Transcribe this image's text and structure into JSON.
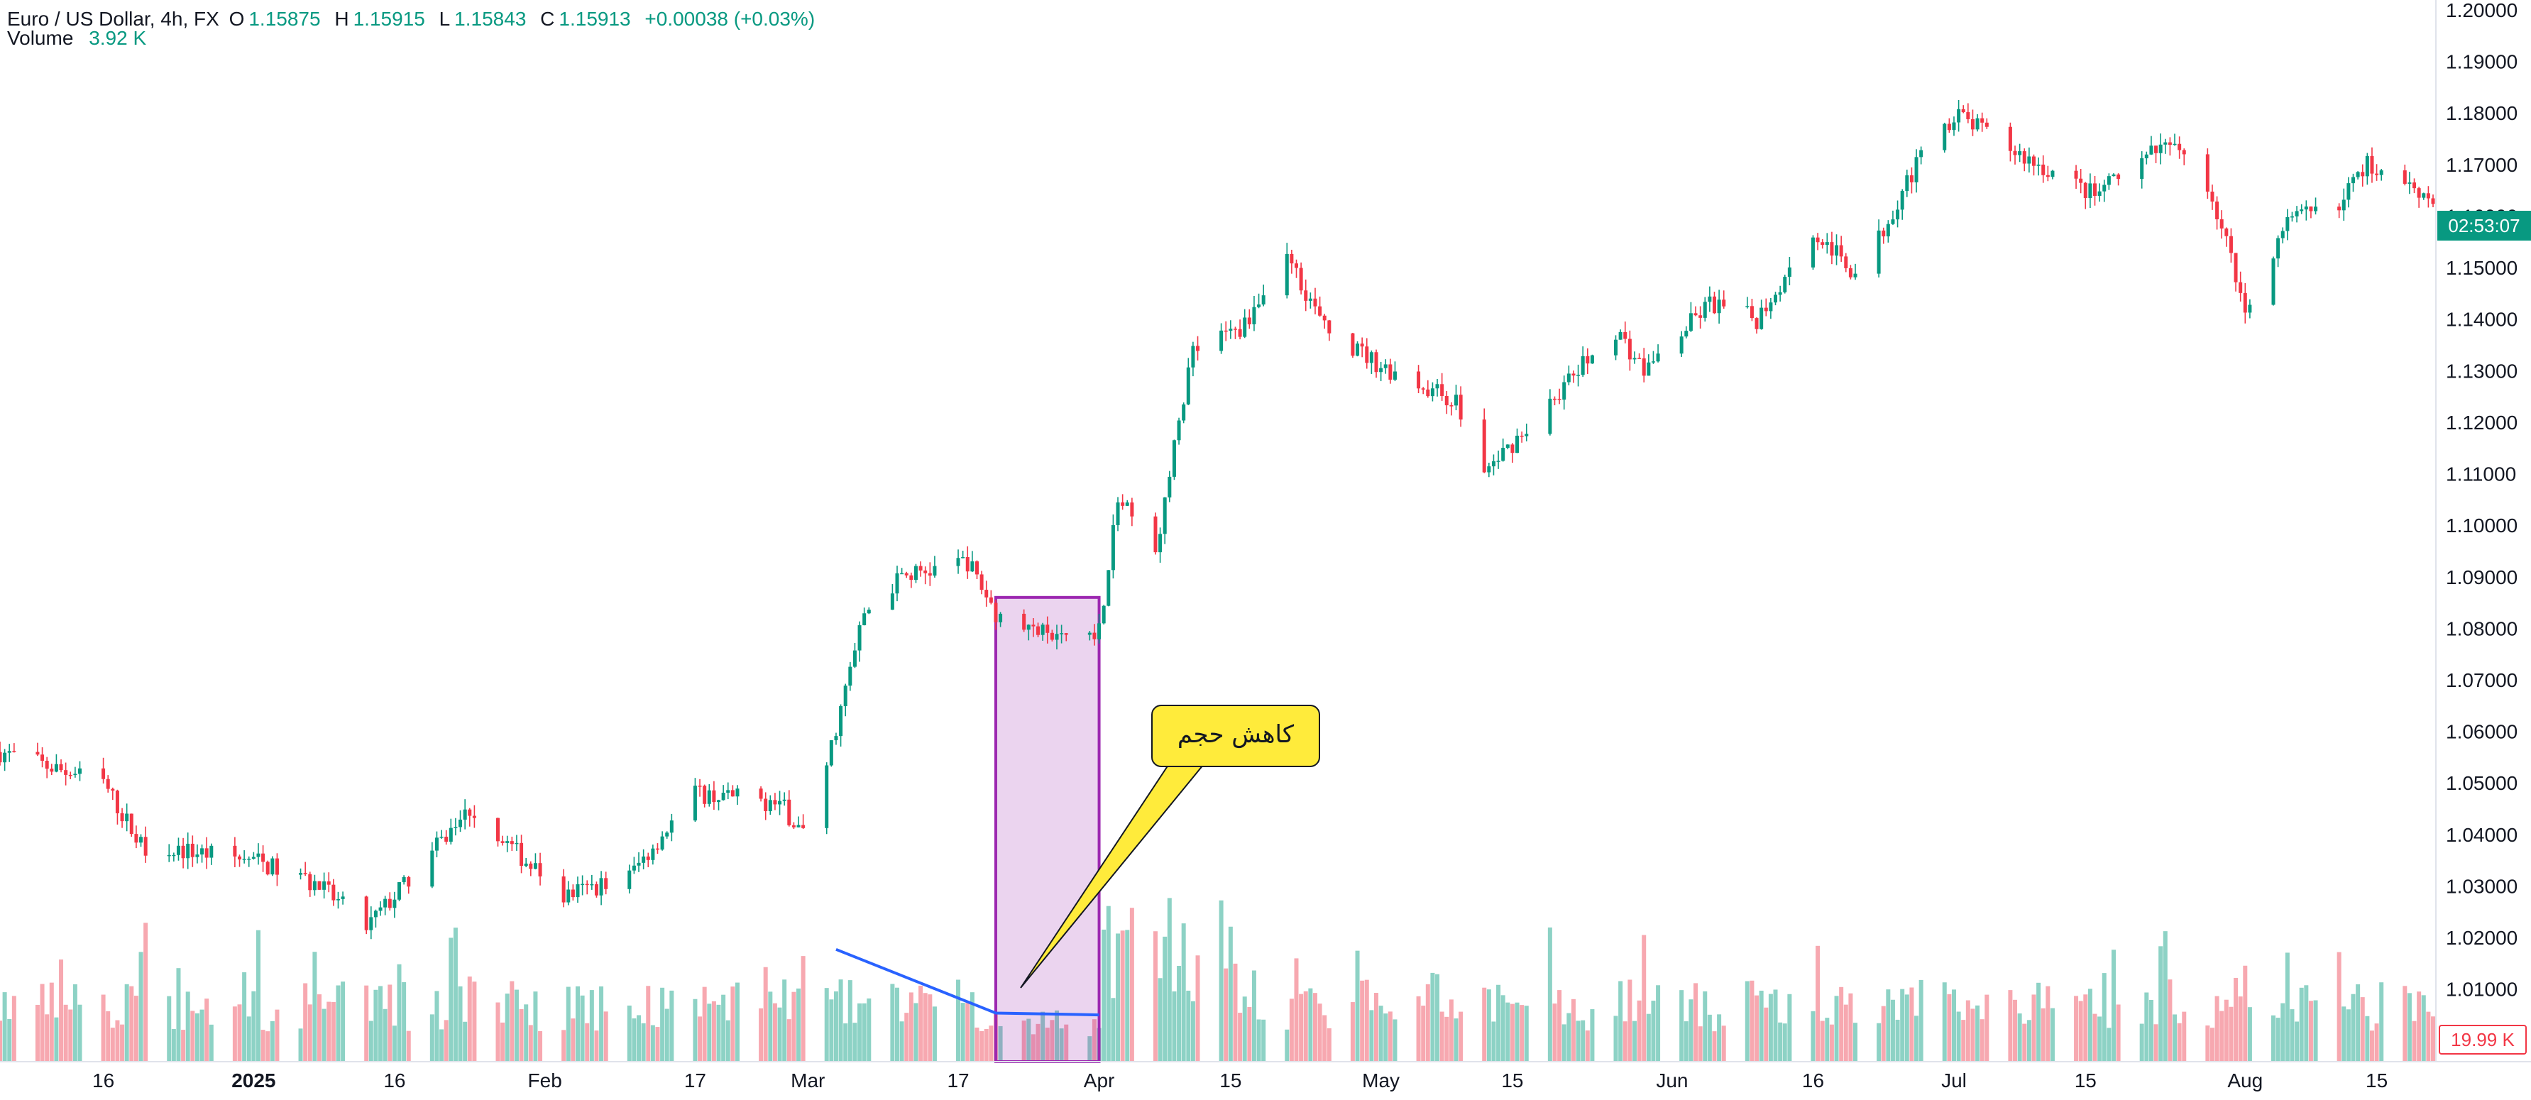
{
  "header": {
    "symbol": "Euro / US Dollar, 4h, FX",
    "o_label": "O",
    "o_value": "1.15875",
    "h_label": "H",
    "h_value": "1.15915",
    "l_label": "L",
    "l_value": "1.15843",
    "c_label": "C",
    "c_value": "1.15913",
    "change": "+0.00038 (+0.03%)",
    "volume_label": "Volume",
    "volume_value": "3.92 K"
  },
  "price_tag": "02:53:07",
  "volume_tag": "19.99 K",
  "annotation": "کاهش حجم",
  "colors": {
    "up": "#089981",
    "down": "#f23645",
    "upVol": "#8dd2c5",
    "downVol": "#f7a8b0",
    "box": "#9c27b0",
    "trend": "#2962ff",
    "callout": "#ffeb3b"
  },
  "chart_data": {
    "type": "candlestick",
    "title": "Euro / US Dollar, 4h, FX",
    "ylim": [
      1.005,
      1.2
    ],
    "y_ticks": [
      "1.01000",
      "1.02000",
      "1.03000",
      "1.04000",
      "1.05000",
      "1.06000",
      "1.07000",
      "1.08000",
      "1.09000",
      "1.10000",
      "1.11000",
      "1.12000",
      "1.13000",
      "1.14000",
      "1.15000",
      "1.16000",
      "1.17000",
      "1.18000",
      "1.19000",
      "1.20000"
    ],
    "x_ticks": [
      "16",
      "2025",
      "16",
      "Feb",
      "17",
      "Mar",
      "17",
      "Apr",
      "15",
      "May",
      "15",
      "Jun",
      "16",
      "Jul",
      "15",
      "Aug",
      "15"
    ],
    "price_path": [
      {
        "t": "Dec 5",
        "y": 1.056
      },
      {
        "t": "Dec 16",
        "y": 1.05
      },
      {
        "t": "Dec 20",
        "y": 1.038
      },
      {
        "t": "Jan 1",
        "y": 1.035
      },
      {
        "t": "Jan 8",
        "y": 1.03
      },
      {
        "t": "Jan 13",
        "y": 1.022
      },
      {
        "t": "Jan 16",
        "y": 1.028
      },
      {
        "t": "Jan 24",
        "y": 1.045
      },
      {
        "t": "Feb 3",
        "y": 1.028
      },
      {
        "t": "Feb 10",
        "y": 1.032
      },
      {
        "t": "Feb 17",
        "y": 1.048
      },
      {
        "t": "Feb 26",
        "y": 1.046
      },
      {
        "t": "Mar 1",
        "y": 1.039
      },
      {
        "t": "Mar 5",
        "y": 1.068
      },
      {
        "t": "Mar 7",
        "y": 1.083
      },
      {
        "t": "Mar 11",
        "y": 1.09
      },
      {
        "t": "Mar 18",
        "y": 1.093
      },
      {
        "t": "Mar 21",
        "y": 1.083
      },
      {
        "t": "Mar 27",
        "y": 1.078
      },
      {
        "t": "Apr 1",
        "y": 1.08
      },
      {
        "t": "Apr 3",
        "y": 1.105
      },
      {
        "t": "Apr 7",
        "y": 1.095
      },
      {
        "t": "Apr 11",
        "y": 1.135
      },
      {
        "t": "Apr 16",
        "y": 1.138
      },
      {
        "t": "Apr 21",
        "y": 1.153
      },
      {
        "t": "Apr 25",
        "y": 1.138
      },
      {
        "t": "May 1",
        "y": 1.131
      },
      {
        "t": "May 9",
        "y": 1.124
      },
      {
        "t": "May 12",
        "y": 1.11
      },
      {
        "t": "May 16",
        "y": 1.118
      },
      {
        "t": "May 26",
        "y": 1.138
      },
      {
        "t": "May 29",
        "y": 1.13
      },
      {
        "t": "Jun 5",
        "y": 1.143
      },
      {
        "t": "Jun 10",
        "y": 1.14
      },
      {
        "t": "Jun 16",
        "y": 1.157
      },
      {
        "t": "Jun 21",
        "y": 1.148
      },
      {
        "t": "Jun 26",
        "y": 1.167
      },
      {
        "t": "Jul 1",
        "y": 1.18
      },
      {
        "t": "Jul 8",
        "y": 1.172
      },
      {
        "t": "Jul 16",
        "y": 1.164
      },
      {
        "t": "Jul 23",
        "y": 1.173
      },
      {
        "t": "Jul 27",
        "y": 1.172
      },
      {
        "t": "Jul 30",
        "y": 1.155
      },
      {
        "t": "Aug 1",
        "y": 1.141
      },
      {
        "t": "Aug 5",
        "y": 1.158
      },
      {
        "t": "Aug 11",
        "y": 1.163
      },
      {
        "t": "Aug 14",
        "y": 1.17
      },
      {
        "t": "Aug 19",
        "y": 1.166
      },
      {
        "t": "Aug 21",
        "y": 1.163
      }
    ],
    "volume_max_k": 55,
    "highlight_period": {
      "start": "Mar 21",
      "end": "Apr 1",
      "top": 1.086,
      "bottom": 1.005
    },
    "volume_trendline": [
      {
        "t": "Mar 4",
        "v_k": 30
      },
      {
        "t": "Mar 21",
        "v_k": 13
      },
      {
        "t": "Apr 1",
        "v_k": 12.5
      }
    ]
  }
}
